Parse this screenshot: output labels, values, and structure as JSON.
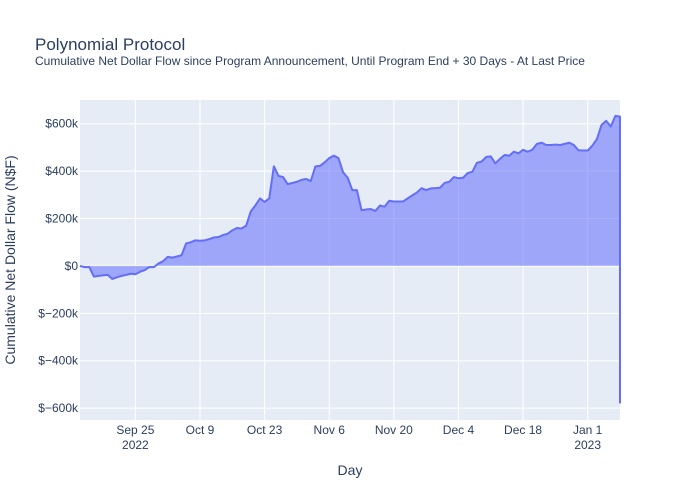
{
  "chart_data": {
    "type": "area",
    "title": "Polynomial Protocol",
    "subtitle": "Cumulative Net Dollar Flow since Program Announcement, Until Program End + 30 Days - At Last Price",
    "xlabel": "Day",
    "ylabel": "Cumulative Net Dollar Flow (N$F)",
    "xlim": [
      "2022-09-13",
      "2023-01-08"
    ],
    "ylim": [
      -650000,
      700000
    ],
    "grid": true,
    "legend": "none",
    "colors": {
      "line": "#636efa",
      "fill": "rgba(99,110,250,0.55)",
      "plot_bg": "#e5ecf6",
      "grid": "#ffffff"
    },
    "x_ticks": [
      {
        "date": "2022-09-25",
        "label": "Sep 25",
        "sublabel": "2022"
      },
      {
        "date": "2022-10-09",
        "label": "Oct 9",
        "sublabel": ""
      },
      {
        "date": "2022-10-23",
        "label": "Oct 23",
        "sublabel": ""
      },
      {
        "date": "2022-11-06",
        "label": "Nov 6",
        "sublabel": ""
      },
      {
        "date": "2022-11-20",
        "label": "Nov 20",
        "sublabel": ""
      },
      {
        "date": "2022-12-04",
        "label": "Dec 4",
        "sublabel": ""
      },
      {
        "date": "2022-12-18",
        "label": "Dec 18",
        "sublabel": ""
      },
      {
        "date": "2023-01-01",
        "label": "Jan 1",
        "sublabel": "2023"
      }
    ],
    "y_ticks": [
      {
        "value": 600000,
        "label": "$600k"
      },
      {
        "value": 400000,
        "label": "$400k"
      },
      {
        "value": 200000,
        "label": "$200k"
      },
      {
        "value": 0,
        "label": "$0"
      },
      {
        "value": -200000,
        "label": "$−200k"
      },
      {
        "value": -400000,
        "label": "$−400k"
      },
      {
        "value": -600000,
        "label": "$−600k"
      }
    ],
    "series": [
      {
        "x": [
          "2022-09-13",
          "2022-09-14",
          "2022-09-15",
          "2022-09-16",
          "2022-09-17",
          "2022-09-18",
          "2022-09-19",
          "2022-09-20",
          "2022-09-21",
          "2022-09-22",
          "2022-09-23",
          "2022-09-24",
          "2022-09-25",
          "2022-09-26",
          "2022-09-27",
          "2022-09-28",
          "2022-09-29",
          "2022-09-30",
          "2022-10-01",
          "2022-10-02",
          "2022-10-03",
          "2022-10-04",
          "2022-10-05",
          "2022-10-06",
          "2022-10-07",
          "2022-10-08",
          "2022-10-09",
          "2022-10-10",
          "2022-10-11",
          "2022-10-12",
          "2022-10-13",
          "2022-10-14",
          "2022-10-15",
          "2022-10-16",
          "2022-10-17",
          "2022-10-18",
          "2022-10-19",
          "2022-10-20",
          "2022-10-21",
          "2022-10-22",
          "2022-10-23",
          "2022-10-24",
          "2022-10-25",
          "2022-10-26",
          "2022-10-27",
          "2022-10-28",
          "2022-10-29",
          "2022-10-30",
          "2022-10-31",
          "2022-11-01",
          "2022-11-02",
          "2022-11-03",
          "2022-11-04",
          "2022-11-05",
          "2022-11-06",
          "2022-11-07",
          "2022-11-08",
          "2022-11-09",
          "2022-11-10",
          "2022-11-11",
          "2022-11-12",
          "2022-11-13",
          "2022-11-14",
          "2022-11-15",
          "2022-11-16",
          "2022-11-17",
          "2022-11-18",
          "2022-11-19",
          "2022-11-20",
          "2022-11-21",
          "2022-11-22",
          "2022-11-23",
          "2022-11-24",
          "2022-11-25",
          "2022-11-26",
          "2022-11-27",
          "2022-11-28",
          "2022-11-29",
          "2022-11-30",
          "2022-12-01",
          "2022-12-02",
          "2022-12-03",
          "2022-12-04",
          "2022-12-05",
          "2022-12-06",
          "2022-12-07",
          "2022-12-08",
          "2022-12-09",
          "2022-12-10",
          "2022-12-11",
          "2022-12-12",
          "2022-12-13",
          "2022-12-14",
          "2022-12-15",
          "2022-12-16",
          "2022-12-17",
          "2022-12-18",
          "2022-12-19",
          "2022-12-20",
          "2022-12-21",
          "2022-12-22",
          "2022-12-23",
          "2022-12-24",
          "2022-12-25",
          "2022-12-26",
          "2022-12-27",
          "2022-12-28",
          "2022-12-29",
          "2022-12-30",
          "2022-12-31",
          "2023-01-01",
          "2023-01-02",
          "2023-01-03",
          "2023-01-04",
          "2023-01-05",
          "2023-01-06",
          "2023-01-07",
          "2023-01-08",
          "2023-01-08"
        ],
        "values": [
          0,
          -5000,
          -5000,
          -45000,
          -42000,
          -40000,
          -38000,
          -55000,
          -48000,
          -42000,
          -38000,
          -33000,
          -35000,
          -25000,
          -18000,
          -5000,
          -5000,
          10000,
          20000,
          38000,
          35000,
          40000,
          45000,
          95000,
          100000,
          108000,
          106000,
          108000,
          113000,
          120000,
          122000,
          130000,
          136000,
          150000,
          160000,
          158000,
          170000,
          230000,
          255000,
          285000,
          270000,
          285000,
          420000,
          380000,
          375000,
          345000,
          350000,
          355000,
          363000,
          367000,
          358000,
          420000,
          422000,
          437000,
          455000,
          465000,
          455000,
          395000,
          372000,
          320000,
          320000,
          235000,
          238000,
          240000,
          232000,
          255000,
          250000,
          275000,
          272000,
          272000,
          272000,
          285000,
          298000,
          310000,
          328000,
          320000,
          327000,
          328000,
          330000,
          350000,
          355000,
          375000,
          370000,
          372000,
          392000,
          397000,
          435000,
          440000,
          460000,
          462000,
          433000,
          452000,
          468000,
          465000,
          482000,
          475000,
          490000,
          482000,
          490000,
          515000,
          520000,
          510000,
          510000,
          512000,
          510000,
          515000,
          520000,
          510000,
          488000,
          487000,
          487000,
          507000,
          535000,
          595000,
          612000,
          588000,
          633000,
          630000,
          -580000
        ]
      }
    ]
  }
}
